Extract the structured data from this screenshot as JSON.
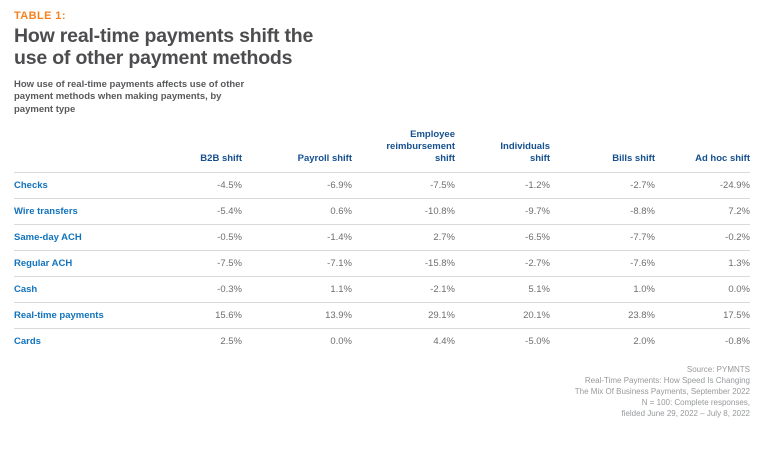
{
  "colors": {
    "accent_orange": "#F58220",
    "title_gray": "#4D4D4F",
    "subtitle_gray": "#58595B",
    "header_navy": "#15508F",
    "row_label_blue": "#1273BC",
    "value_gray": "#6D6E71",
    "separator_gray": "#D8D9DA",
    "source_gray": "#97999C",
    "background": "#FFFFFF"
  },
  "header": {
    "table_label": "TABLE 1:",
    "title_lines": [
      "How real-time payments shift the",
      "use of other payment methods"
    ],
    "subtitle_lines": [
      "How use of real-time payments affects use of other",
      "payment methods when making payments, by",
      "payment type"
    ]
  },
  "chart_data": {
    "type": "table",
    "title": "How real-time payments shift the use of other payment methods",
    "subtitle": "How use of real-time payments affects use of other payment methods when making payments, by payment type",
    "columns": [
      "B2B shift",
      "Payroll shift",
      "Employee reimbursement shift",
      "Individuals shift",
      "Bills shift",
      "Ad hoc shift"
    ],
    "rows": [
      {
        "label": "Checks",
        "values": [
          "-4.5%",
          "-6.9%",
          "-7.5%",
          "-1.2%",
          "-2.7%",
          "-24.9%"
        ]
      },
      {
        "label": "Wire transfers",
        "values": [
          "-5.4%",
          "0.6%",
          "-10.8%",
          "-9.7%",
          "-8.8%",
          "7.2%"
        ]
      },
      {
        "label": "Same-day ACH",
        "values": [
          "-0.5%",
          "-1.4%",
          "2.7%",
          "-6.5%",
          "-7.7%",
          "-0.2%"
        ]
      },
      {
        "label": "Regular ACH",
        "values": [
          "-7.5%",
          "-7.1%",
          "-15.8%",
          "-2.7%",
          "-7.6%",
          "1.3%"
        ]
      },
      {
        "label": "Cash",
        "values": [
          "-0.3%",
          "1.1%",
          "-2.1%",
          "5.1%",
          "1.0%",
          "0.0%"
        ]
      },
      {
        "label": "Real-time payments",
        "values": [
          "15.6%",
          "13.9%",
          "29.1%",
          "20.1%",
          "23.8%",
          "17.5%"
        ]
      },
      {
        "label": "Cards",
        "values": [
          "2.5%",
          "0.0%",
          "4.4%",
          "-5.0%",
          "2.0%",
          "-0.8%"
        ]
      }
    ]
  },
  "source": {
    "lines": [
      "Source: PYMNTS",
      "Real-Time Payments: How Speed Is Changing",
      "The Mix Of Business Payments, September 2022",
      "N = 100: Complete responses,",
      "fielded June 29, 2022 – July 8, 2022"
    ]
  }
}
